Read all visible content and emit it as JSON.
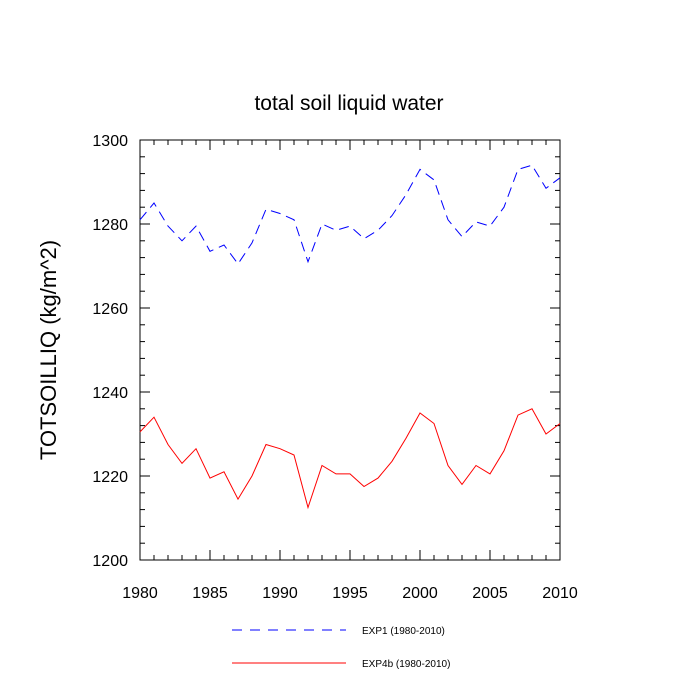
{
  "chart_data": {
    "type": "line",
    "title": "total soil liquid water",
    "xlabel": "",
    "ylabel": "TOTSOILLIQ  (kg/m^2)",
    "xlim": [
      1980,
      2010
    ],
    "ylim": [
      1200,
      1300
    ],
    "xticks": [
      1980,
      1985,
      1990,
      1995,
      2000,
      2005,
      2010
    ],
    "yticks": [
      1200,
      1220,
      1240,
      1260,
      1280,
      1300
    ],
    "x": [
      1980,
      1981,
      1982,
      1983,
      1984,
      1985,
      1986,
      1987,
      1988,
      1989,
      1990,
      1991,
      1992,
      1993,
      1994,
      1995,
      1996,
      1997,
      1998,
      1999,
      2000,
      2001,
      2002,
      2003,
      2004,
      2005,
      2006,
      2007,
      2008,
      2009,
      2010
    ],
    "series": [
      {
        "name": "EXP1 (1980-2010)",
        "color": "#0000ff",
        "dash": "dashed",
        "values": [
          1281,
          1285,
          1279.5,
          1276,
          1279.5,
          1273.5,
          1275,
          1270.5,
          1275.5,
          1283.5,
          1282.5,
          1281,
          1271,
          1280,
          1278.5,
          1279.5,
          1276.5,
          1278.5,
          1282,
          1287,
          1293,
          1290.5,
          1281,
          1277,
          1280.5,
          1279.5,
          1284,
          1293,
          1294,
          1288.5,
          1291
        ]
      },
      {
        "name": "EXP4b (1980-2010)",
        "color": "#ff0000",
        "dash": "solid",
        "values": [
          1230.5,
          1234,
          1227.5,
          1223,
          1226.5,
          1219.5,
          1221,
          1214.5,
          1220,
          1227.5,
          1226.5,
          1225,
          1212.5,
          1222.5,
          1220.5,
          1220.5,
          1217.5,
          1219.5,
          1223.5,
          1229,
          1235,
          1232.5,
          1222.5,
          1218,
          1222.5,
          1220.5,
          1226,
          1234.5,
          1236,
          1230,
          1232.5
        ]
      }
    ],
    "legend_position": "bottom"
  }
}
